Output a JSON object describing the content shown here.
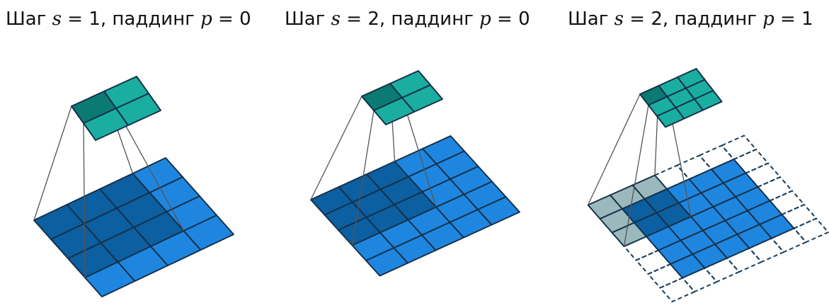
{
  "panels": [
    {
      "id": "p1",
      "word": "Шаг",
      "s_sym": "s",
      "eq1": "= 1,",
      "pad_word": "паддинг",
      "p_sym": "p",
      "eq2": "= 0",
      "stride": 1,
      "padding": 0,
      "input_size": 4,
      "output_size": 2
    },
    {
      "id": "p2",
      "word": "Шаг",
      "s_sym": "s",
      "eq1": "= 2,",
      "pad_word": "паддинг",
      "p_sym": "p",
      "eq2": "= 0",
      "stride": 2,
      "padding": 0,
      "input_size": 5,
      "output_size": 2
    },
    {
      "id": "p3",
      "word": "Шаг",
      "s_sym": "s",
      "eq1": "= 2,",
      "pad_word": "паддинг",
      "p_sym": "p",
      "eq2": "= 1",
      "stride": 2,
      "padding": 1,
      "input_size": 5,
      "output_size": 3
    }
  ],
  "colors": {
    "input": "#1f86e0",
    "input_window": "#0c5fa0",
    "output": "#1aaea0",
    "output_active": "#0b7a72",
    "padding_window": "#9bb8bc",
    "grid_line": "#15314a",
    "pad_line": "#1b3f5c"
  }
}
